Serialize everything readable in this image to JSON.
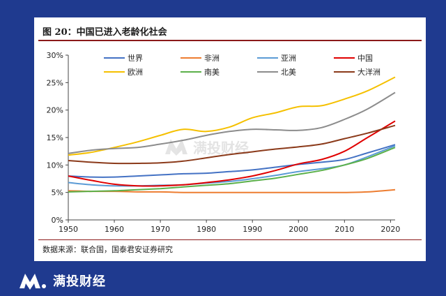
{
  "figure": {
    "title": "图 20：中国已进入老龄化社会",
    "source": "数据来源：联合国，国泰君安证券研究"
  },
  "watermark": "满投财经",
  "brand": {
    "name": "满投财经",
    "icon": "brand-logo-icon"
  },
  "chart_data": {
    "type": "line",
    "x": [
      1950,
      1955,
      1960,
      1965,
      1970,
      1975,
      1980,
      1985,
      1990,
      1995,
      2000,
      2005,
      2010,
      2015,
      2021
    ],
    "xticks": [
      1950,
      1960,
      1970,
      1980,
      1990,
      2000,
      2010,
      2020
    ],
    "xlim": [
      1950,
      2021
    ],
    "ylim": [
      0,
      30
    ],
    "yticks": [
      "0%",
      "5%",
      "10%",
      "15%",
      "20%",
      "25%",
      "30%"
    ],
    "ytick_values": [
      0,
      5,
      10,
      15,
      20,
      25,
      30
    ],
    "grid": false,
    "legend": "top",
    "series": [
      {
        "name": "世界",
        "color": "#4472c4",
        "values": [
          8.0,
          7.8,
          7.8,
          8.0,
          8.2,
          8.4,
          8.5,
          8.8,
          9.1,
          9.6,
          10.1,
          10.5,
          11.0,
          12.2,
          13.7
        ]
      },
      {
        "name": "非洲",
        "color": "#ed7d31",
        "values": [
          5.3,
          5.2,
          5.2,
          5.1,
          5.1,
          5.0,
          5.0,
          5.0,
          5.0,
          5.0,
          5.0,
          5.0,
          5.0,
          5.1,
          5.5
        ]
      },
      {
        "name": "亚洲",
        "color": "#5b9bd5",
        "values": [
          6.8,
          6.4,
          6.2,
          6.2,
          6.3,
          6.4,
          6.7,
          7.0,
          7.5,
          8.1,
          8.8,
          9.3,
          10.0,
          11.5,
          13.5
        ]
      },
      {
        "name": "中国",
        "color": "#e00000",
        "values": [
          8.0,
          7.2,
          6.5,
          6.2,
          6.2,
          6.4,
          6.8,
          7.3,
          8.0,
          9.0,
          10.2,
          11.0,
          12.5,
          15.0,
          18.0
        ]
      },
      {
        "name": "欧洲",
        "color": "#f5c000",
        "values": [
          11.8,
          12.3,
          13.2,
          14.2,
          15.4,
          16.5,
          16.1,
          16.9,
          18.6,
          19.5,
          20.6,
          20.8,
          22.0,
          23.5,
          26.0
        ]
      },
      {
        "name": "南美",
        "color": "#5bb04a",
        "values": [
          5.1,
          5.2,
          5.3,
          5.5,
          5.7,
          6.0,
          6.3,
          6.6,
          7.1,
          7.6,
          8.3,
          9.0,
          10.0,
          11.2,
          13.2
        ]
      },
      {
        "name": "北美",
        "color": "#8c8c8c",
        "values": [
          12.1,
          12.7,
          13.0,
          13.2,
          13.8,
          14.5,
          15.4,
          16.1,
          16.5,
          16.4,
          16.3,
          16.8,
          18.3,
          20.2,
          23.2
        ]
      },
      {
        "name": "大洋洲",
        "color": "#8b3a1a",
        "values": [
          10.8,
          10.5,
          10.3,
          10.3,
          10.4,
          10.7,
          11.3,
          11.9,
          12.4,
          12.9,
          13.3,
          13.8,
          14.8,
          15.8,
          17.2
        ]
      }
    ]
  }
}
